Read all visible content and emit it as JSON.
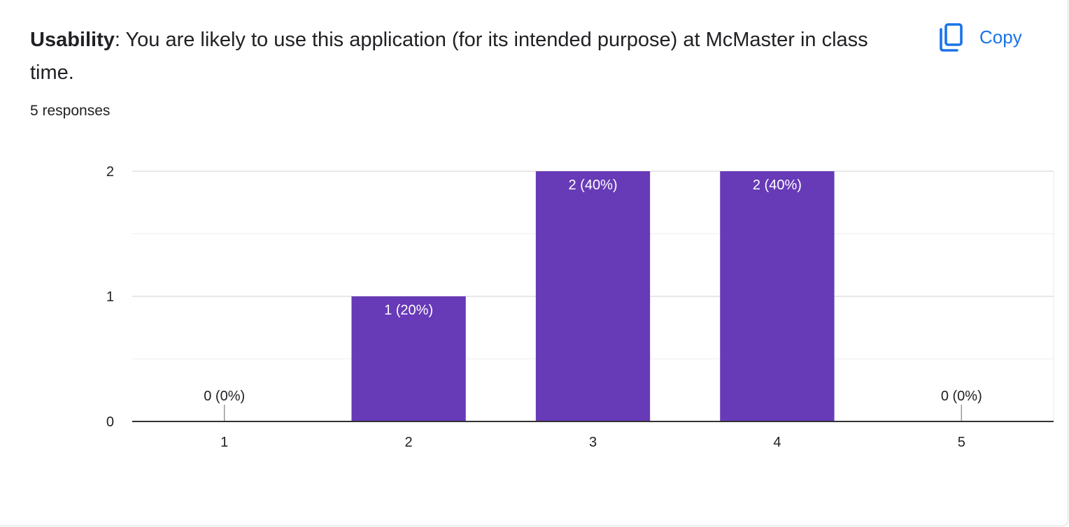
{
  "question": {
    "bold": "Usability",
    "rest": ": You are likely to use this application (for its intended purpose) at McMaster in class time."
  },
  "responses": "5 responses",
  "copy": {
    "label": "Copy",
    "icon": "copy-icon",
    "color": "#1a73e8"
  },
  "chart_data": {
    "type": "bar",
    "categories": [
      "1",
      "2",
      "3",
      "4",
      "5"
    ],
    "values": [
      0,
      1,
      2,
      2,
      0
    ],
    "data_labels": [
      "0 (0%)",
      "1 (20%)",
      "2 (40%)",
      "2 (40%)",
      "0 (0%)"
    ],
    "y_ticks": [
      0,
      1,
      2
    ],
    "ylim": [
      0,
      2
    ],
    "grid": true,
    "bar_color": "#673ab7"
  }
}
